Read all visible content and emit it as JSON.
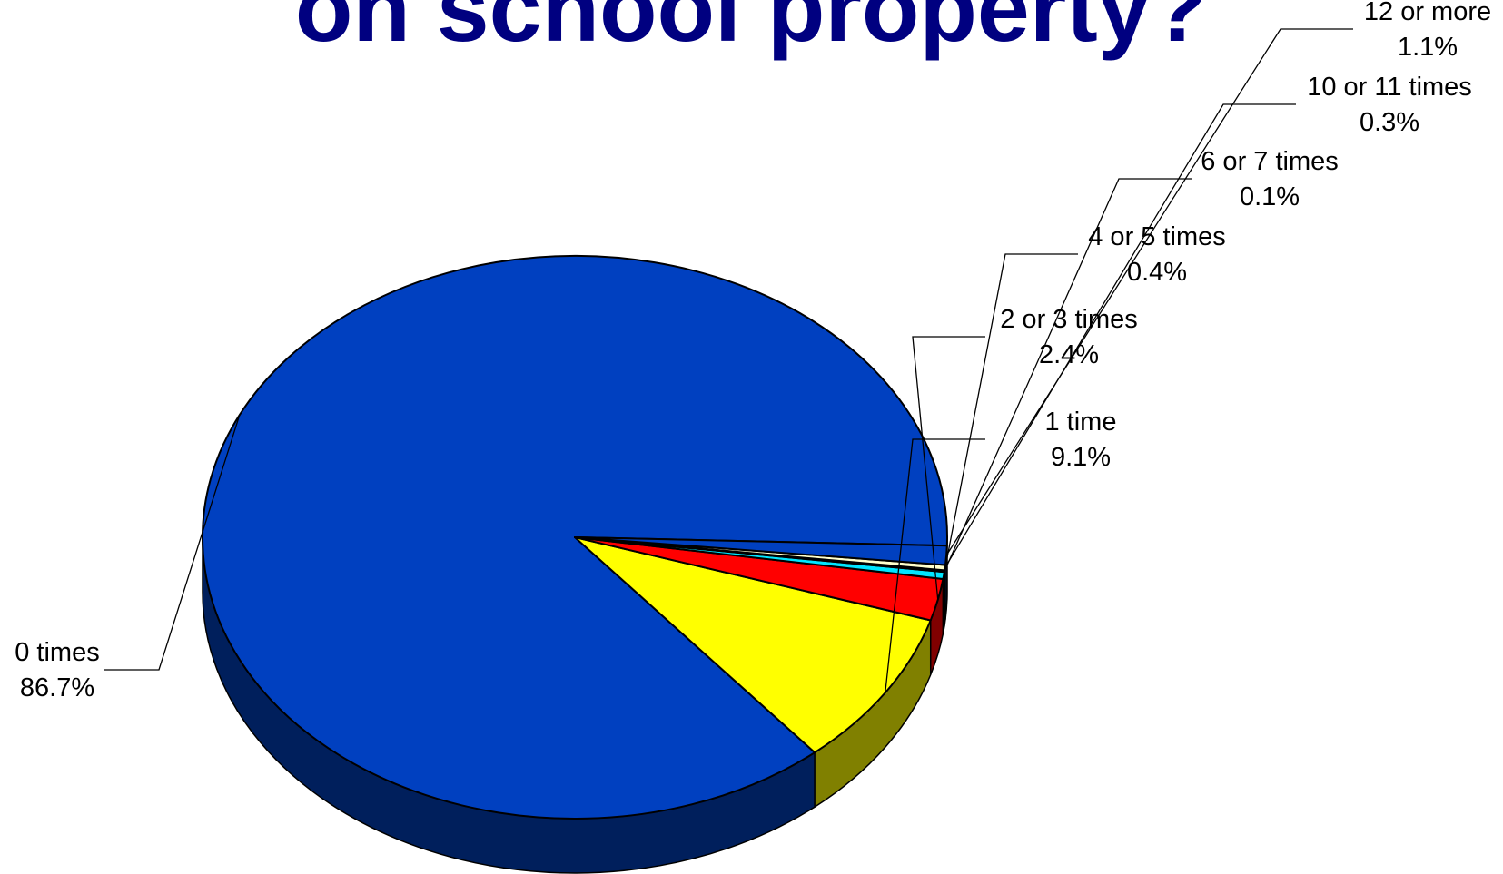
{
  "title": "on school property?",
  "chart_data": {
    "type": "pie",
    "three_d": true,
    "categories": [
      "0 times",
      "1 time",
      "2 or 3 times",
      "4 or 5 times",
      "6 or 7 times",
      "10 or 11 times",
      "12 or more"
    ],
    "values": [
      86.7,
      9.1,
      2.4,
      0.4,
      0.1,
      0.3,
      1.1
    ],
    "value_labels": [
      "86.7%",
      "9.1%",
      "2.4%",
      "0.4%",
      "0.1%",
      "0.3%",
      "1.1%"
    ],
    "colors": [
      "#0040C0",
      "#FFFF00",
      "#FF0000",
      "#00E5FF",
      "#FFFFFF",
      "#FFFFCC",
      "#0040C0"
    ],
    "side_colors": [
      "#001F5C",
      "#808000",
      "#800000",
      "#007A88",
      "#AAAAAA",
      "#AAAA88",
      "#001F5C"
    ],
    "legend": "none"
  }
}
